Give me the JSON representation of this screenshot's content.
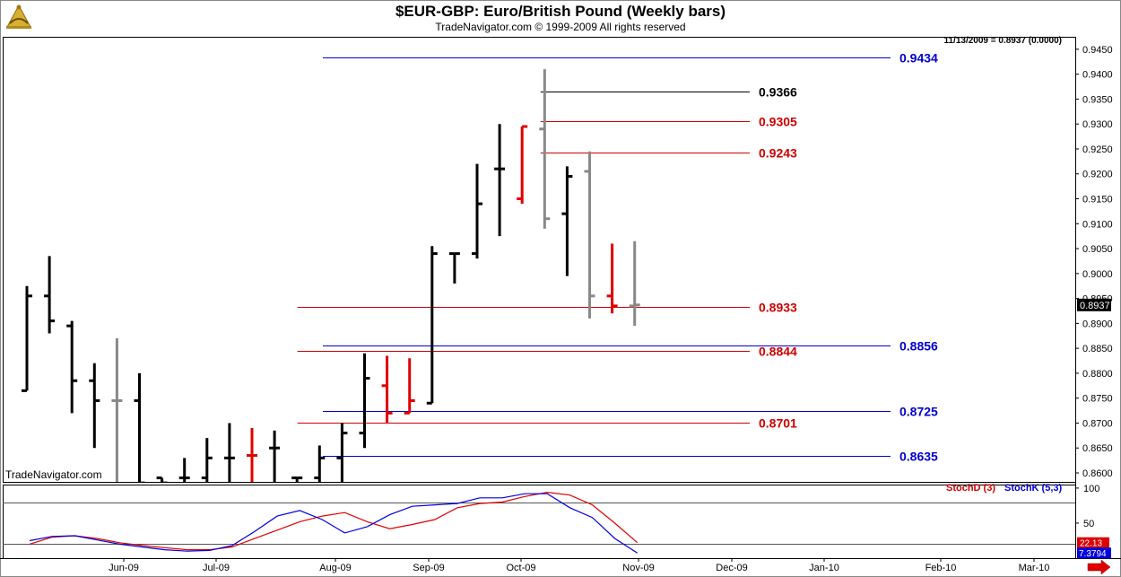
{
  "header": {
    "title": "$EUR-GBP:  Euro/British Pound  (Weekly bars)",
    "subtitle": "TradeNavigator.com © 1999-2009 All rights reserved",
    "watermark": "TradeNavigator.com",
    "info_line": "11/13/2009 = 0.8937 (0.0000)",
    "logo_icon": "sextant-logo-icon",
    "scroll_icon": "right-arrow-icon"
  },
  "chart_data": {
    "type": "ohlc",
    "price_axis": {
      "range": [
        0.8582,
        0.9475
      ],
      "ticks": [
        "0.8600",
        "0.8650",
        "0.8700",
        "0.8750",
        "0.8800",
        "0.8850",
        "0.8900",
        "0.8950",
        "0.9000",
        "0.9050",
        "0.9100",
        "0.9150",
        "0.9200",
        "0.9250",
        "0.9300",
        "0.9350",
        "0.9400",
        "0.9450"
      ],
      "tick_values": [
        0.86,
        0.865,
        0.87,
        0.875,
        0.88,
        0.885,
        0.89,
        0.895,
        0.9,
        0.905,
        0.91,
        0.915,
        0.92,
        0.925,
        0.93,
        0.935,
        0.94,
        0.945
      ],
      "current_label": "0.8937",
      "current_value": 0.8937
    },
    "time_axis": {
      "labels": [
        "Jun-09",
        "Jul-09",
        "Aug-09",
        "Sep-09",
        "Oct-09",
        "Nov-09",
        "Dec-09",
        "Jan-10",
        "Feb-10",
        "Mar-10"
      ]
    },
    "bars": [
      {
        "open": 0.8765,
        "high": 0.8975,
        "low": 0.8765,
        "close": 0.8955,
        "color": "#000000"
      },
      {
        "open": 0.8955,
        "high": 0.9035,
        "low": 0.888,
        "close": 0.8905,
        "color": "#000000"
      },
      {
        "open": 0.8895,
        "high": 0.8905,
        "low": 0.872,
        "close": 0.8785,
        "color": "#000000"
      },
      {
        "open": 0.8785,
        "high": 0.882,
        "low": 0.865,
        "close": 0.8745,
        "color": "#000000"
      },
      {
        "open": 0.8745,
        "high": 0.887,
        "low": 0.858,
        "close": 0.8745,
        "color": "#888888"
      },
      {
        "open": 0.8745,
        "high": 0.88,
        "low": 0.858,
        "close": 0.858,
        "color": "#000000"
      },
      {
        "open": 0.859,
        "high": 0.859,
        "low": 0.858,
        "close": 0.858,
        "color": "#000000"
      },
      {
        "open": 0.859,
        "high": 0.863,
        "low": 0.858,
        "close": 0.859,
        "color": "#000000"
      },
      {
        "open": 0.859,
        "high": 0.867,
        "low": 0.858,
        "close": 0.863,
        "color": "#000000"
      },
      {
        "open": 0.863,
        "high": 0.87,
        "low": 0.858,
        "close": 0.863,
        "color": "#000000"
      },
      {
        "open": 0.8635,
        "high": 0.869,
        "low": 0.858,
        "close": 0.8635,
        "color": "#e00000"
      },
      {
        "open": 0.865,
        "high": 0.8685,
        "low": 0.858,
        "close": 0.865,
        "color": "#000000"
      },
      {
        "open": 0.859,
        "high": 0.859,
        "low": 0.858,
        "close": 0.859,
        "color": "#000000"
      },
      {
        "open": 0.859,
        "high": 0.8655,
        "low": 0.858,
        "close": 0.863,
        "color": "#000000"
      },
      {
        "open": 0.863,
        "high": 0.87,
        "low": 0.858,
        "close": 0.868,
        "color": "#000000"
      },
      {
        "open": 0.868,
        "high": 0.884,
        "low": 0.865,
        "close": 0.879,
        "color": "#000000"
      },
      {
        "open": 0.8775,
        "high": 0.8835,
        "low": 0.87,
        "close": 0.872,
        "color": "#e00000"
      },
      {
        "open": 0.872,
        "high": 0.883,
        "low": 0.872,
        "close": 0.8745,
        "color": "#e00000"
      },
      {
        "open": 0.874,
        "high": 0.9055,
        "low": 0.874,
        "close": 0.904,
        "color": "#000000"
      },
      {
        "open": 0.904,
        "high": 0.904,
        "low": 0.898,
        "close": 0.904,
        "color": "#000000"
      },
      {
        "open": 0.904,
        "high": 0.922,
        "low": 0.903,
        "close": 0.914,
        "color": "#000000"
      },
      {
        "open": 0.921,
        "high": 0.93,
        "low": 0.9075,
        "close": 0.921,
        "color": "#000000"
      },
      {
        "open": 0.915,
        "high": 0.9295,
        "low": 0.914,
        "close": 0.9295,
        "color": "#e00000"
      },
      {
        "open": 0.929,
        "high": 0.941,
        "low": 0.909,
        "close": 0.911,
        "color": "#888888"
      },
      {
        "open": 0.912,
        "high": 0.9215,
        "low": 0.8995,
        "close": 0.9195,
        "color": "#000000"
      },
      {
        "open": 0.9205,
        "high": 0.9245,
        "low": 0.891,
        "close": 0.8955,
        "color": "#888888"
      },
      {
        "open": 0.8955,
        "high": 0.906,
        "low": 0.892,
        "close": 0.8935,
        "color": "#e00000"
      },
      {
        "open": 0.8935,
        "high": 0.9065,
        "low": 0.8895,
        "close": 0.8937,
        "color": "#888888"
      }
    ],
    "levels": [
      {
        "label": "0.9434",
        "value": 0.9434,
        "color": "#0000cc",
        "x_from": 0.2985
      },
      {
        "label": "0.9366",
        "value": 0.9366,
        "color": "#000000",
        "x_from": 0.5015
      },
      {
        "label": "0.9305",
        "value": 0.9305,
        "color": "#cc0000",
        "x_from": 0.5015
      },
      {
        "label": "0.9243",
        "value": 0.9243,
        "color": "#cc0000",
        "x_from": 0.5015
      },
      {
        "label": "0.8933",
        "value": 0.8933,
        "color": "#cc0000",
        "x_from": 0.2748
      },
      {
        "label": "0.8856",
        "value": 0.8856,
        "color": "#0000cc",
        "x_from": 0.2985
      },
      {
        "label": "0.8844",
        "value": 0.8844,
        "color": "#cc0000",
        "x_from": 0.2748
      },
      {
        "label": "0.8725",
        "value": 0.8725,
        "color": "#0000cc",
        "x_from": 0.2985
      },
      {
        "label": "0.8701",
        "value": 0.8701,
        "color": "#cc0000",
        "x_from": 0.2748
      },
      {
        "label": "0.8635",
        "value": 0.8635,
        "color": "#0000cc",
        "x_from": 0.2985
      }
    ],
    "stochastic": {
      "axis": {
        "range": [
          0,
          105
        ],
        "ticks": [
          "100",
          "50"
        ],
        "tick_values": [
          100,
          50
        ],
        "reference_lines": [
          80,
          20
        ]
      },
      "legend": [
        {
          "label": "StochD (3)",
          "color": "#cc0000"
        },
        {
          "label": "StochK (5,3)",
          "color": "#0000cc"
        }
      ],
      "d_label": "22.13",
      "k_label": "7.3794",
      "d_value": 22.13,
      "k_value": 7.3794,
      "d_values": [
        20,
        30,
        32,
        28,
        22,
        18,
        15,
        12,
        12,
        16,
        28,
        40,
        52,
        60,
        65,
        52,
        42,
        48,
        55,
        72,
        78,
        80,
        88,
        94,
        90,
        76,
        50,
        22.13
      ],
      "k_values": [
        25,
        31,
        32,
        26,
        20,
        16,
        12,
        10,
        11,
        18,
        38,
        60,
        68,
        55,
        36,
        45,
        62,
        74,
        76,
        78,
        86,
        86,
        92,
        92,
        72,
        58,
        28,
        7.3794
      ]
    }
  }
}
